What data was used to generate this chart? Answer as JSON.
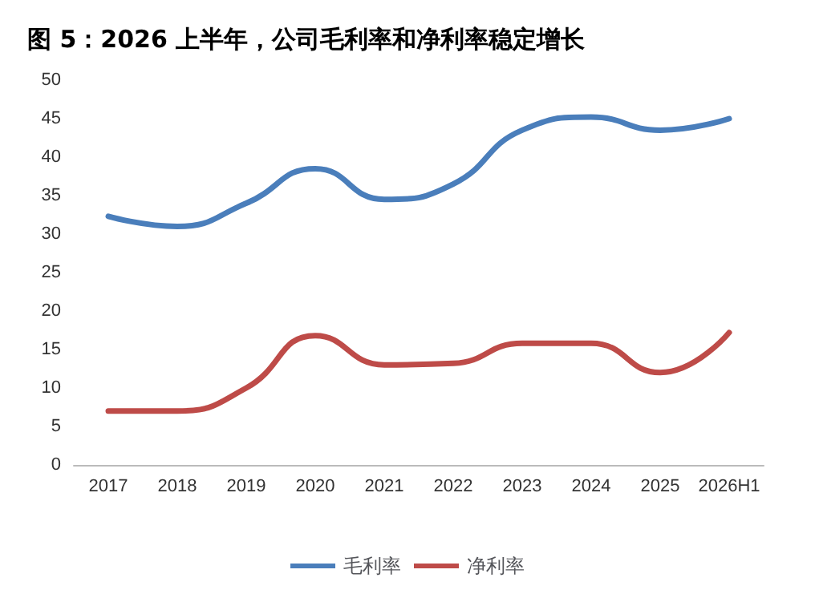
{
  "chart_data": {
    "type": "line",
    "title": "图 5：2026 上半年，公司毛利率和净利率稳定增长",
    "categories": [
      "2017",
      "2018",
      "2019",
      "2020",
      "2021",
      "2022",
      "2023",
      "2024",
      "2025",
      "2026H1"
    ],
    "series": [
      {
        "name": "毛利率",
        "color": "#4a7ebb",
        "values": [
          32.3,
          31,
          34,
          38.5,
          34.5,
          36.5,
          43.5,
          45.2,
          43.5,
          45
        ]
      },
      {
        "name": "净利率",
        "color": "#be4b48",
        "values": [
          7,
          7,
          10,
          16.8,
          13,
          13.2,
          15.8,
          15.8,
          12,
          17.2
        ]
      }
    ],
    "ylim": [
      0,
      50
    ],
    "yticks": [
      0,
      5,
      10,
      15,
      20,
      25,
      30,
      35,
      40,
      45,
      50
    ],
    "grid": false,
    "legend": "bottom",
    "marker": "none",
    "line_style": "solid"
  }
}
